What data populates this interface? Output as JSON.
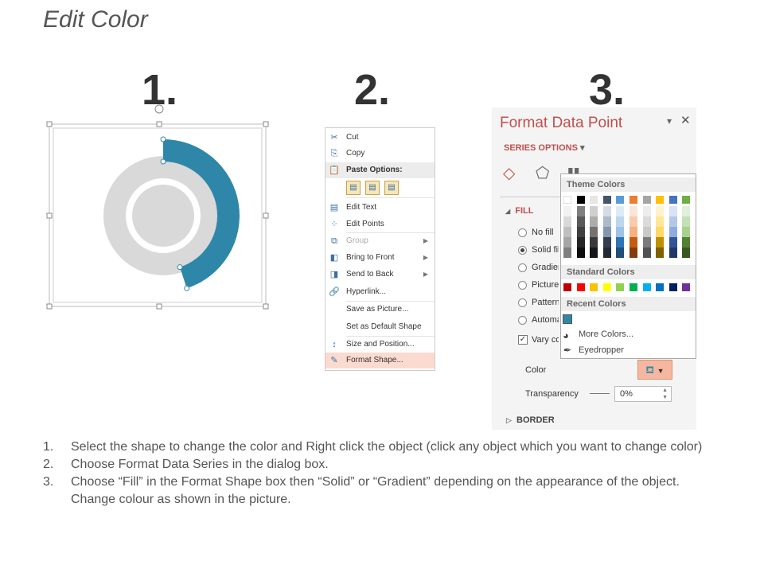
{
  "title": "Edit Color",
  "steps_numbers": [
    "1.",
    "2.",
    "3."
  ],
  "donut": {
    "blue": "#2e87a8",
    "gray": "#d9d9d9",
    "blue_fraction": 0.45
  },
  "context_menu": {
    "items": [
      {
        "label": "Cut",
        "icon": "scissors-icon",
        "glyph": "✂"
      },
      {
        "label": "Copy",
        "icon": "copy-icon",
        "glyph": "⎘"
      },
      {
        "label": "Paste Options:",
        "icon": "paste-icon",
        "glyph": "📋"
      },
      {
        "label": "Edit Text",
        "icon": "edit-text-icon",
        "glyph": "▤"
      },
      {
        "label": "Edit Points",
        "icon": "edit-points-icon",
        "glyph": "⁘"
      },
      {
        "label": "Group",
        "icon": "group-icon",
        "glyph": "⧉",
        "disabled": true,
        "submenu": true
      },
      {
        "label": "Bring to Front",
        "icon": "bring-front-icon",
        "glyph": "◧",
        "submenu": true
      },
      {
        "label": "Send to Back",
        "icon": "send-back-icon",
        "glyph": "◨",
        "submenu": true
      },
      {
        "label": "Hyperlink...",
        "icon": "hyperlink-icon",
        "glyph": "🔗"
      },
      {
        "label": "Save as Picture...",
        "icon": "",
        "glyph": ""
      },
      {
        "label": "Set as Default Shape",
        "icon": "",
        "glyph": ""
      },
      {
        "label": "Size and Position...",
        "icon": "size-position-icon",
        "glyph": "↕"
      },
      {
        "label": "Format Shape...",
        "icon": "format-shape-icon",
        "glyph": "✎",
        "highlighted": true
      }
    ]
  },
  "format_panel": {
    "title": "Format Data Point",
    "series_options": "SERIES OPTIONS",
    "fill_label": "FILL",
    "fill_options": [
      "No fill",
      "Solid fill",
      "Gradient fill",
      "Picture or texture fill",
      "Pattern fill",
      "Automatic"
    ],
    "selected_fill": "Solid fill",
    "vary_colors": "Vary colors by point",
    "color_label": "Color",
    "transparency_label": "Transparency",
    "transparency_value": "0%",
    "border_label": "BORDER",
    "accent": "#c0504d"
  },
  "palette": {
    "theme_label": "Theme Colors",
    "standard_label": "Standard Colors",
    "recent_label": "Recent Colors",
    "more_colors": "More Colors...",
    "eyedropper": "Eyedropper",
    "theme_colors": [
      [
        "#ffffff",
        "#f2f2f2",
        "#d9d9d9",
        "#bfbfbf",
        "#a6a6a6",
        "#808080"
      ],
      [
        "#000000",
        "#7f7f7f",
        "#595959",
        "#404040",
        "#262626",
        "#0d0d0d"
      ],
      [
        "#e7e6e6",
        "#d0cece",
        "#aeabab",
        "#757171",
        "#3a3838",
        "#171616"
      ],
      [
        "#44546a",
        "#d6dce5",
        "#adb9ca",
        "#8497b0",
        "#333f50",
        "#222a35"
      ],
      [
        "#5b9bd5",
        "#deebf7",
        "#bdd7ee",
        "#9dc3e6",
        "#2e75b6",
        "#1f4e79"
      ],
      [
        "#ed7d31",
        "#fbe5d6",
        "#f8cbad",
        "#f4b183",
        "#c55a11",
        "#843c0c"
      ],
      [
        "#a5a5a5",
        "#ededed",
        "#dbdbdb",
        "#c9c9c9",
        "#7b7b7b",
        "#525252"
      ],
      [
        "#ffc000",
        "#fff2cc",
        "#ffe699",
        "#ffd966",
        "#bf9000",
        "#7f6000"
      ],
      [
        "#4472c4",
        "#dae3f3",
        "#b4c7e7",
        "#8faadc",
        "#2f5597",
        "#203864"
      ],
      [
        "#70ad47",
        "#e2f0d9",
        "#c5e0b4",
        "#a9d18e",
        "#548235",
        "#385723"
      ]
    ],
    "standard_colors": [
      "#c00000",
      "#ff0000",
      "#ffc000",
      "#ffff00",
      "#92d050",
      "#00b050",
      "#00b0f0",
      "#0070c0",
      "#002060",
      "#7030a0"
    ],
    "recent_colors": [
      "#2e87a8"
    ]
  },
  "instructions": [
    {
      "n": "1.",
      "text": "Select the shape to change the color and Right click the object (click any object which you want to change color)"
    },
    {
      "n": "2.",
      "text": "Choose Format Data Series in the dialog box."
    },
    {
      "n": "3.",
      "text": "Choose “Fill” in the Format Shape box then “Solid” or “Gradient” depending on the appearance of the object. Change colour as shown in the picture."
    }
  ]
}
